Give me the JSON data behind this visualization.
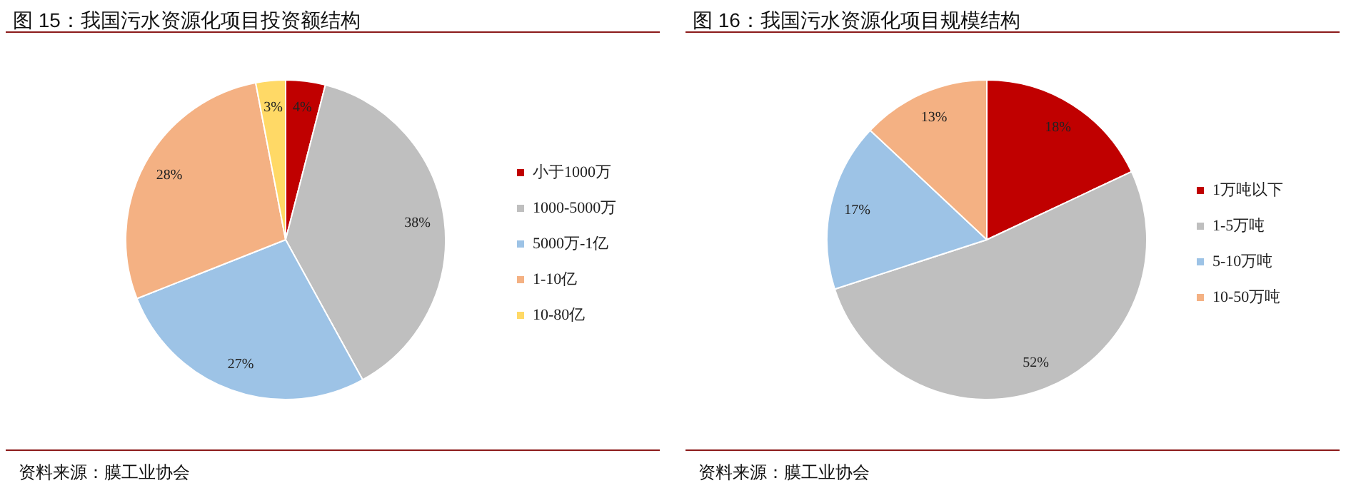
{
  "chart_data": [
    {
      "type": "pie",
      "title": "图 15：我国污水资源化项目投资额结构",
      "categories": [
        "小于1000万",
        "1000-5000万",
        "5000万-1亿",
        "1-10亿",
        "10-80亿"
      ],
      "values": [
        4,
        38,
        27,
        28,
        3
      ],
      "value_labels": [
        "4%",
        "38%",
        "27%",
        "28%",
        "3%"
      ],
      "colors": [
        "#c00000",
        "#bfbfbf",
        "#9dc3e6",
        "#f4b183",
        "#ffd966"
      ],
      "legend": "right",
      "annotations": [
        "资料来源：膜工业协会"
      ]
    },
    {
      "type": "pie",
      "title": "图 16：我国污水资源化项目规模结构",
      "categories": [
        "1万吨以下",
        "1-5万吨",
        "5-10万吨",
        "10-50万吨"
      ],
      "values": [
        18,
        52,
        17,
        13
      ],
      "value_labels": [
        "18%",
        "52%",
        "17%",
        "13%"
      ],
      "colors": [
        "#c00000",
        "#bfbfbf",
        "#9dc3e6",
        "#f4b183"
      ],
      "legend": "right",
      "annotations": [
        "资料来源：膜工业协会"
      ]
    }
  ]
}
